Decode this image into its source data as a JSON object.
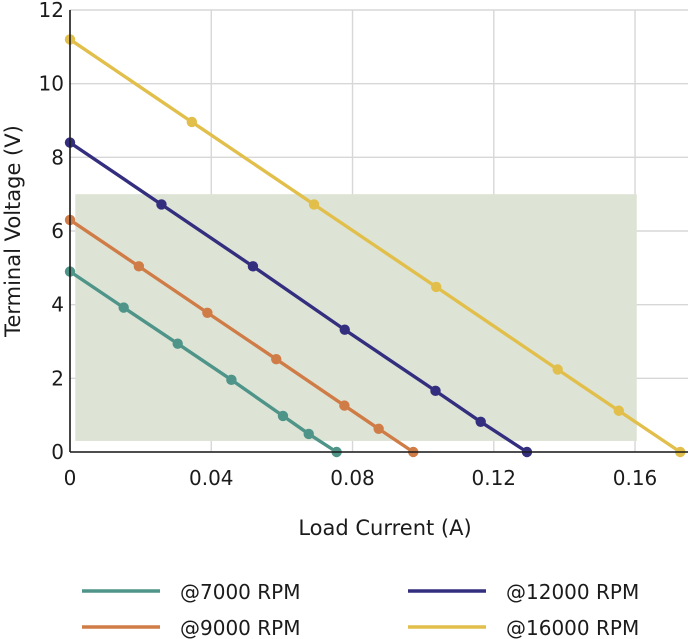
{
  "chart_data": {
    "type": "line",
    "xlabel": "Load Current (A)",
    "ylabel": "Terminal Voltage (V)",
    "xlim": [
      0,
      0.175
    ],
    "ylim": [
      0,
      12
    ],
    "x_ticks": [
      0,
      0.04,
      0.08,
      0.12,
      0.16
    ],
    "x_tick_labels": [
      "0",
      "0.04",
      "0.08",
      "0.12",
      "0.16"
    ],
    "y_ticks": [
      0,
      2,
      4,
      6,
      8,
      10,
      12
    ],
    "y_tick_labels": [
      "0",
      "2",
      "4",
      "6",
      "8",
      "10",
      "12"
    ],
    "grid": true,
    "legend_position": "bottom",
    "highlight_region": {
      "x": [
        0.0015,
        0.1605
      ],
      "y": [
        0.3,
        7.0
      ],
      "color": "#dde4d6"
    },
    "series": [
      {
        "name": "@7000 RPM",
        "color": "#4f9488",
        "x": [
          0.0,
          0.0152,
          0.0305,
          0.0457,
          0.0603,
          0.0676,
          0.0755
        ],
        "y": [
          4.9,
          3.92,
          2.94,
          1.96,
          0.98,
          0.49,
          0.0
        ]
      },
      {
        "name": "@9000 RPM",
        "color": "#d07c47",
        "x": [
          0.0,
          0.0195,
          0.0389,
          0.0584,
          0.0777,
          0.0874,
          0.0972
        ],
        "y": [
          6.3,
          5.04,
          3.78,
          2.52,
          1.26,
          0.63,
          0.0
        ]
      },
      {
        "name": "@12000 RPM",
        "color": "#342e7f",
        "x": [
          0.0,
          0.0259,
          0.0518,
          0.0778,
          0.1035,
          0.1163,
          0.1294
        ],
        "y": [
          8.4,
          6.72,
          5.04,
          3.32,
          1.66,
          0.82,
          0.0
        ]
      },
      {
        "name": "@16000 RPM",
        "color": "#e1bf4a",
        "x": [
          0.0,
          0.0345,
          0.0691,
          0.1037,
          0.1381,
          0.1554,
          0.1728
        ],
        "y": [
          11.2,
          8.96,
          6.72,
          4.48,
          2.24,
          1.12,
          0.0
        ]
      }
    ]
  }
}
